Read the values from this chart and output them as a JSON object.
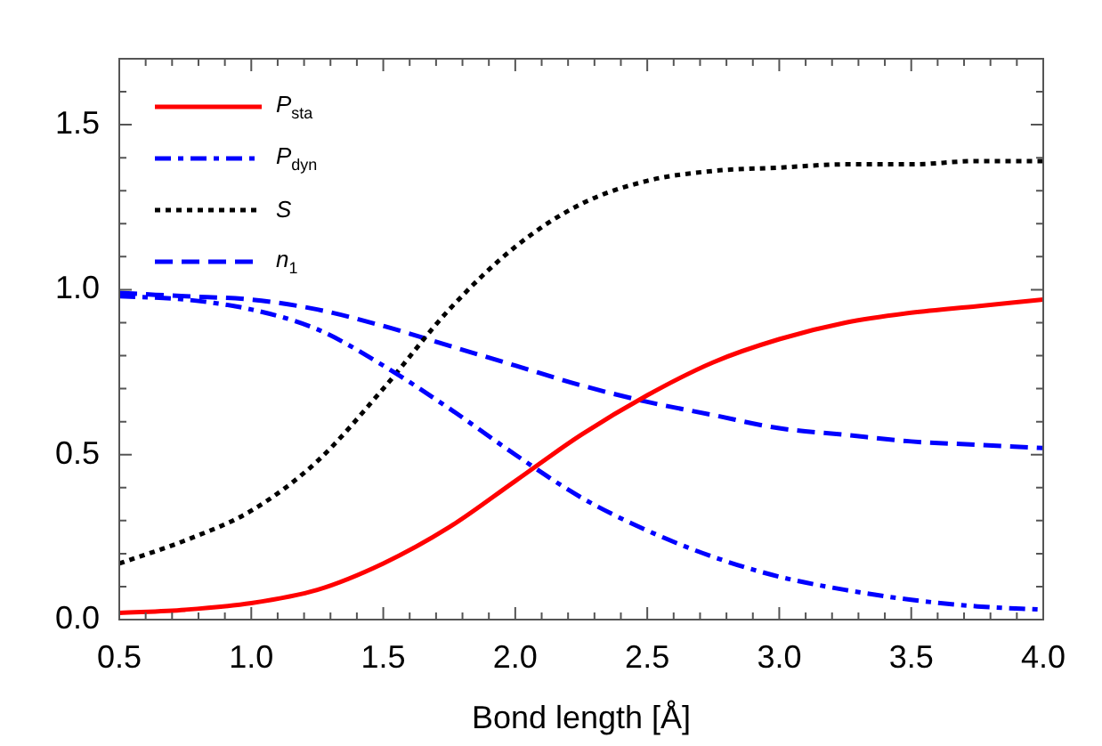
{
  "chart_data": {
    "type": "line",
    "xlabel": "Bond length [Å]",
    "x": [
      0.5,
      0.75,
      1.0,
      1.25,
      1.5,
      1.75,
      2.0,
      2.25,
      2.5,
      2.75,
      3.0,
      3.25,
      3.5,
      3.75,
      4.0
    ],
    "series": [
      {
        "name": "P$_{sta}$",
        "color": "#ff0000",
        "line_style": "solid",
        "values": [
          0.02,
          0.03,
          0.05,
          0.09,
          0.17,
          0.28,
          0.42,
          0.56,
          0.68,
          0.78,
          0.85,
          0.9,
          0.93,
          0.95,
          0.97
        ]
      },
      {
        "name": "P$_{dyn}$",
        "color": "#0000ff",
        "line_style": "dashdot",
        "values": [
          0.98,
          0.97,
          0.94,
          0.88,
          0.77,
          0.64,
          0.5,
          0.37,
          0.27,
          0.19,
          0.13,
          0.09,
          0.06,
          0.04,
          0.03
        ]
      },
      {
        "name": "S",
        "color": "#000000",
        "line_style": "dotted",
        "values": [
          0.17,
          0.24,
          0.33,
          0.48,
          0.7,
          0.94,
          1.13,
          1.26,
          1.33,
          1.36,
          1.37,
          1.38,
          1.38,
          1.39,
          1.39
        ]
      },
      {
        "name": "n$_{1}$",
        "color": "#0000ff",
        "line_style": "dashed",
        "values": [
          0.99,
          0.98,
          0.97,
          0.94,
          0.89,
          0.83,
          0.77,
          0.71,
          0.66,
          0.62,
          0.58,
          0.56,
          0.54,
          0.53,
          0.52
        ]
      }
    ],
    "xlim": [
      0.5,
      4.0
    ],
    "xticks": [
      {
        "value": 0.5,
        "label": "0.5"
      },
      {
        "value": 1.0,
        "label": "1.0"
      },
      {
        "value": 1.5,
        "label": "1.5"
      },
      {
        "value": 2.0,
        "label": "2.0"
      },
      {
        "value": 2.5,
        "label": "2.5"
      },
      {
        "value": 3.0,
        "label": "3.0"
      },
      {
        "value": 3.5,
        "label": "3.5"
      },
      {
        "value": 4.0,
        "label": "4.0"
      }
    ],
    "ylim": [
      0,
      1.7
    ],
    "yticks": [
      {
        "value": 0,
        "label": "0.0"
      },
      {
        "value": 0.5,
        "label": "0.5"
      },
      {
        "value": 1.0,
        "label": "1.0"
      },
      {
        "value": 1.5,
        "label": "1.5"
      }
    ],
    "grid": false,
    "legend": "top left",
    "marker": "none"
  }
}
